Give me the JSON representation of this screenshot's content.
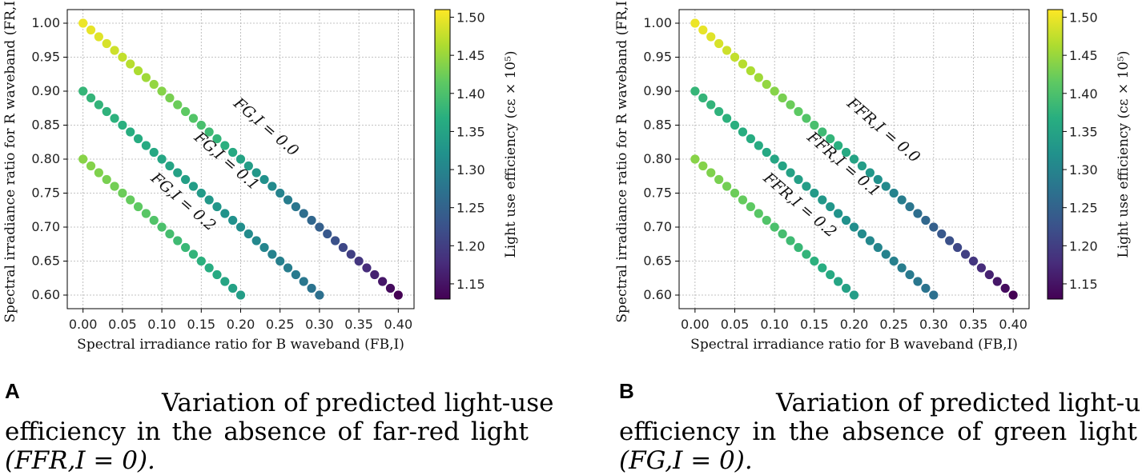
{
  "colorbar": {
    "label": "Light use efficiency",
    "unit_label": "(cε × 10⁵)",
    "ticks": [
      "1.15",
      "1.20",
      "1.25",
      "1.30",
      "1.35",
      "1.40",
      "1.45",
      "1.50"
    ],
    "range": [
      1.13,
      1.51
    ],
    "colormap": "viridis"
  },
  "chart_data": [
    {
      "type": "scatter",
      "panel": "A",
      "xlabel": "Spectral irradiance ratio for B waveband (FB,I)",
      "ylabel": "Spectral irradiance ratio for R waveband (FR,I)",
      "xlim": [
        -0.02,
        0.42
      ],
      "ylim": [
        0.58,
        1.02
      ],
      "xticks": [
        "0.00",
        "0.05",
        "0.10",
        "0.15",
        "0.20",
        "0.25",
        "0.30",
        "0.35",
        "0.40"
      ],
      "yticks": [
        "0.60",
        "0.65",
        "0.70",
        "0.75",
        "0.80",
        "0.85",
        "0.90",
        "0.95",
        "1.00"
      ],
      "grid": true,
      "series": [
        {
          "name": "FG,I = 0.0",
          "r_start": 1.0,
          "b_end": 0.4,
          "c_start": 1.5,
          "c_end": 1.13
        },
        {
          "name": "FG,I = 0.1",
          "r_start": 0.9,
          "b_end": 0.3,
          "c_start": 1.38,
          "c_end": 1.27
        },
        {
          "name": "FG,I = 0.2",
          "r_start": 0.8,
          "b_end": 0.2,
          "c_start": 1.44,
          "c_end": 1.34
        }
      ],
      "annotations": [
        "FG,I = 0.0",
        "FG,I = 0.1",
        "FG,I = 0.2"
      ]
    },
    {
      "type": "scatter",
      "panel": "B",
      "xlabel": "Spectral irradiance ratio for B waveband (FB,I)",
      "ylabel": "Spectral irradiance ratio for R waveband (FR,I)",
      "xlim": [
        -0.02,
        0.42
      ],
      "ylim": [
        0.58,
        1.02
      ],
      "xticks": [
        "0.00",
        "0.05",
        "0.10",
        "0.15",
        "0.20",
        "0.25",
        "0.30",
        "0.35",
        "0.40"
      ],
      "yticks": [
        "0.60",
        "0.65",
        "0.70",
        "0.75",
        "0.80",
        "0.85",
        "0.90",
        "0.95",
        "1.00"
      ],
      "grid": true,
      "series": [
        {
          "name": "FFR,I = 0.0",
          "r_start": 1.0,
          "b_end": 0.4,
          "c_start": 1.5,
          "c_end": 1.13
        },
        {
          "name": "FFR,I = 0.1",
          "r_start": 0.9,
          "b_end": 0.3,
          "c_start": 1.38,
          "c_end": 1.27
        },
        {
          "name": "FFR,I = 0.2",
          "r_start": 0.8,
          "b_end": 0.2,
          "c_start": 1.44,
          "c_end": 1.34
        }
      ],
      "annotations": [
        "FFR,I = 0.0",
        "FFR,I = 0.1",
        "FFR,I = 0.2"
      ]
    }
  ],
  "captions": [
    {
      "letter": "A",
      "line1": "Variation of predicted light-use",
      "line2": "efficiency in the absence of far-red light",
      "line3": "(FFR,I = 0)."
    },
    {
      "letter": "B",
      "line1": "Variation of predicted light-use",
      "line2": "efficiency in the absence of green light",
      "line3": "(FG,I = 0)."
    }
  ]
}
